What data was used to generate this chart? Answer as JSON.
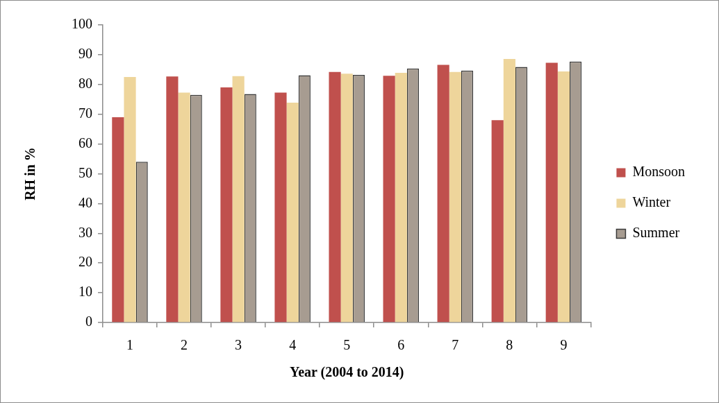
{
  "chart_data": {
    "type": "bar",
    "xlabel": "Year (2004 to 2014)",
    "ylabel": "RH in %",
    "categories": [
      "1",
      "2",
      "3",
      "4",
      "5",
      "6",
      "7",
      "8",
      "9"
    ],
    "series": [
      {
        "name": "Monsoon",
        "color": "#c0504d",
        "values": [
          69.0,
          82.7,
          79.0,
          77.3,
          84.2,
          82.9,
          86.6,
          68.0,
          87.3
        ]
      },
      {
        "name": "Winter",
        "color": "#eed59b",
        "values": [
          82.5,
          77.3,
          82.8,
          73.9,
          83.6,
          83.9,
          84.2,
          88.6,
          84.4
        ]
      },
      {
        "name": "Summer",
        "color": "#a79c91",
        "values": [
          54.0,
          76.5,
          76.8,
          83.1,
          83.2,
          85.4,
          84.7,
          85.9,
          87.7
        ]
      }
    ],
    "ylim": [
      0,
      100
    ],
    "yticks": [
      0,
      10,
      20,
      30,
      40,
      50,
      60,
      70,
      80,
      90,
      100
    ],
    "legend": "right"
  }
}
